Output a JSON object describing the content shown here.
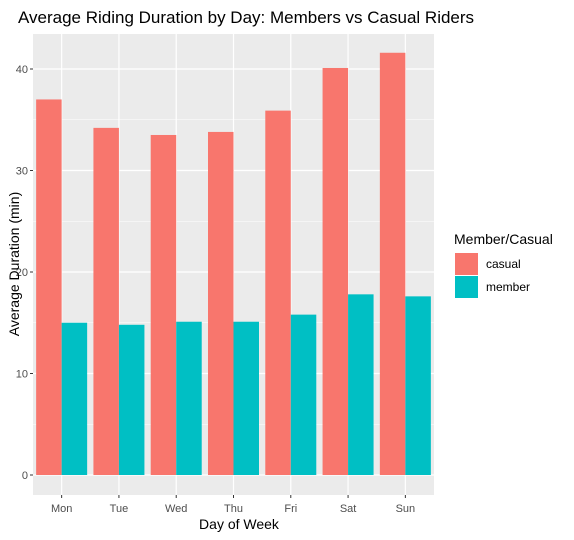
{
  "chart_data": {
    "type": "bar",
    "title": "Average Riding Duration by Day: Members vs Casual Riders",
    "xlabel": "Day of Week",
    "ylabel": "Average Duration (min)",
    "categories": [
      "Mon",
      "Tue",
      "Wed",
      "Thu",
      "Fri",
      "Sat",
      "Sun"
    ],
    "series": [
      {
        "name": "casual",
        "color": "#F8766D",
        "values": [
          37.0,
          34.2,
          33.5,
          33.8,
          35.9,
          40.1,
          41.6
        ]
      },
      {
        "name": "member",
        "color": "#00BFC4",
        "values": [
          15.0,
          14.8,
          15.1,
          15.1,
          15.8,
          17.8,
          17.6
        ]
      }
    ],
    "ylim": [
      0,
      43.2
    ],
    "yticks": [
      0,
      10,
      20,
      30,
      40
    ],
    "grid": true,
    "legend": {
      "title": "Member/Casual",
      "position": "right"
    }
  }
}
